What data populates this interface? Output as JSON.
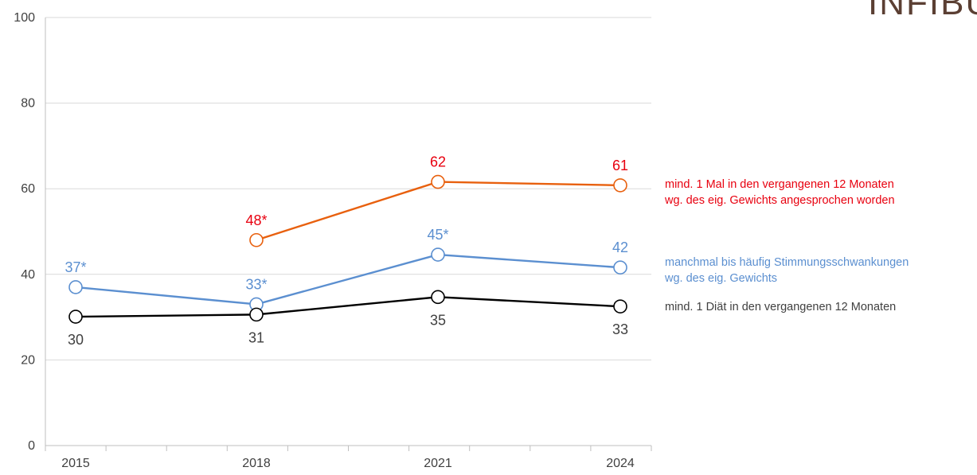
{
  "logo": {
    "text": "INFIBU",
    "color": "#5b3f33"
  },
  "chart_data": {
    "type": "line",
    "title": "",
    "xlabel": "",
    "ylabel": "",
    "categories": [
      "2015",
      "2018",
      "2021",
      "2024"
    ],
    "ylim": [
      0,
      100
    ],
    "yticks": [
      0,
      20,
      40,
      60,
      80,
      100
    ],
    "grid": true,
    "legend_placement": "right",
    "series": [
      {
        "name": "mind. 1 Mal in den vergangenen 12 Monaten wg. des eig. Gewichts angesprochen worden",
        "legend_lines": [
          "mind. 1 Mal in den vergangenen 12 Monaten",
          "wg. des eig. Gewichts angesprochen worden"
        ],
        "values": [
          null,
          48,
          61.6,
          60.8
        ],
        "labels": [
          null,
          "48*",
          "62",
          "61"
        ],
        "line_color": "#e8600e",
        "label_color": "#e8000f",
        "label_position": [
          "above",
          "above",
          "above",
          "above"
        ]
      },
      {
        "name": "manchmal bis häufig Stimmungsschwankungen wg. des eig. Gewichts",
        "legend_lines": [
          "manchmal bis häufig Stimmungsschwankungen",
          "wg. des eig. Gewichts"
        ],
        "values": [
          37,
          33,
          44.6,
          41.6
        ],
        "labels": [
          "37*",
          "33*",
          "45*",
          "42"
        ],
        "line_color": "#5b8fd0",
        "label_color": "#5b8fd0",
        "label_position": [
          "above",
          "above",
          "above",
          "above"
        ]
      },
      {
        "name": "mind. 1 Diät in den vergangenen 12 Monaten",
        "legend_lines": [
          "mind. 1 Diät in den vergangenen 12 Monaten"
        ],
        "values": [
          30.1,
          30.6,
          34.7,
          32.5
        ],
        "labels": [
          "30",
          "31",
          "35",
          "33"
        ],
        "line_color": "#000000",
        "label_color": "#404040",
        "label_position": [
          "below",
          "below",
          "below",
          "below"
        ]
      }
    ]
  }
}
